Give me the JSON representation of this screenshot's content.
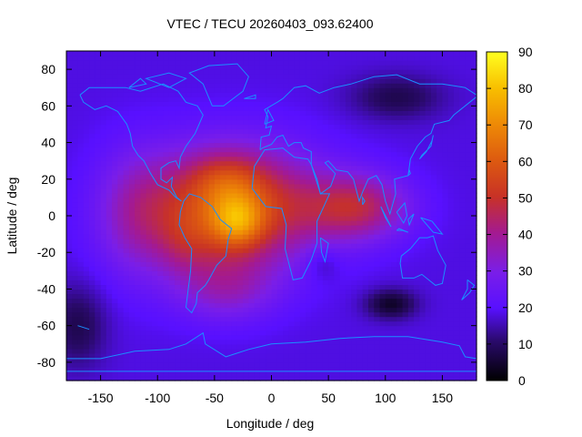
{
  "chart_data": {
    "type": "heatmap",
    "title": "VTEC / TECU 20260403_093.62400",
    "xlabel": "Longitude / deg",
    "ylabel": "Latitude / deg",
    "xlim": [
      -180,
      180
    ],
    "ylim": [
      -90,
      90
    ],
    "xticks": [
      -150,
      -100,
      -50,
      0,
      50,
      100,
      150
    ],
    "yticks": [
      -80,
      -60,
      -40,
      -20,
      0,
      20,
      40,
      60,
      80
    ],
    "colorbar": {
      "range": [
        0,
        90
      ],
      "ticks": [
        0,
        10,
        20,
        30,
        40,
        50,
        60,
        70,
        80,
        90
      ],
      "colormap": "black-purple-red-orange-yellow"
    },
    "grid": false,
    "overlay": "coastlines",
    "coastline_color": "#1a8fff",
    "field_features": [
      {
        "lon": -30,
        "lat": -3,
        "peak_tecu": 88
      },
      {
        "lon": -40,
        "lat": 20,
        "peak_tecu": 70
      },
      {
        "lon": -75,
        "lat": -15,
        "peak_tecu": 65
      },
      {
        "lon": 80,
        "lat": 5,
        "peak_tecu": 55
      },
      {
        "lon": 110,
        "lat": 65,
        "min_tecu": 8
      },
      {
        "lon": 105,
        "lat": -48,
        "min_tecu": 5
      },
      {
        "lon": -170,
        "lat": -60,
        "min_tecu": 8
      }
    ]
  }
}
